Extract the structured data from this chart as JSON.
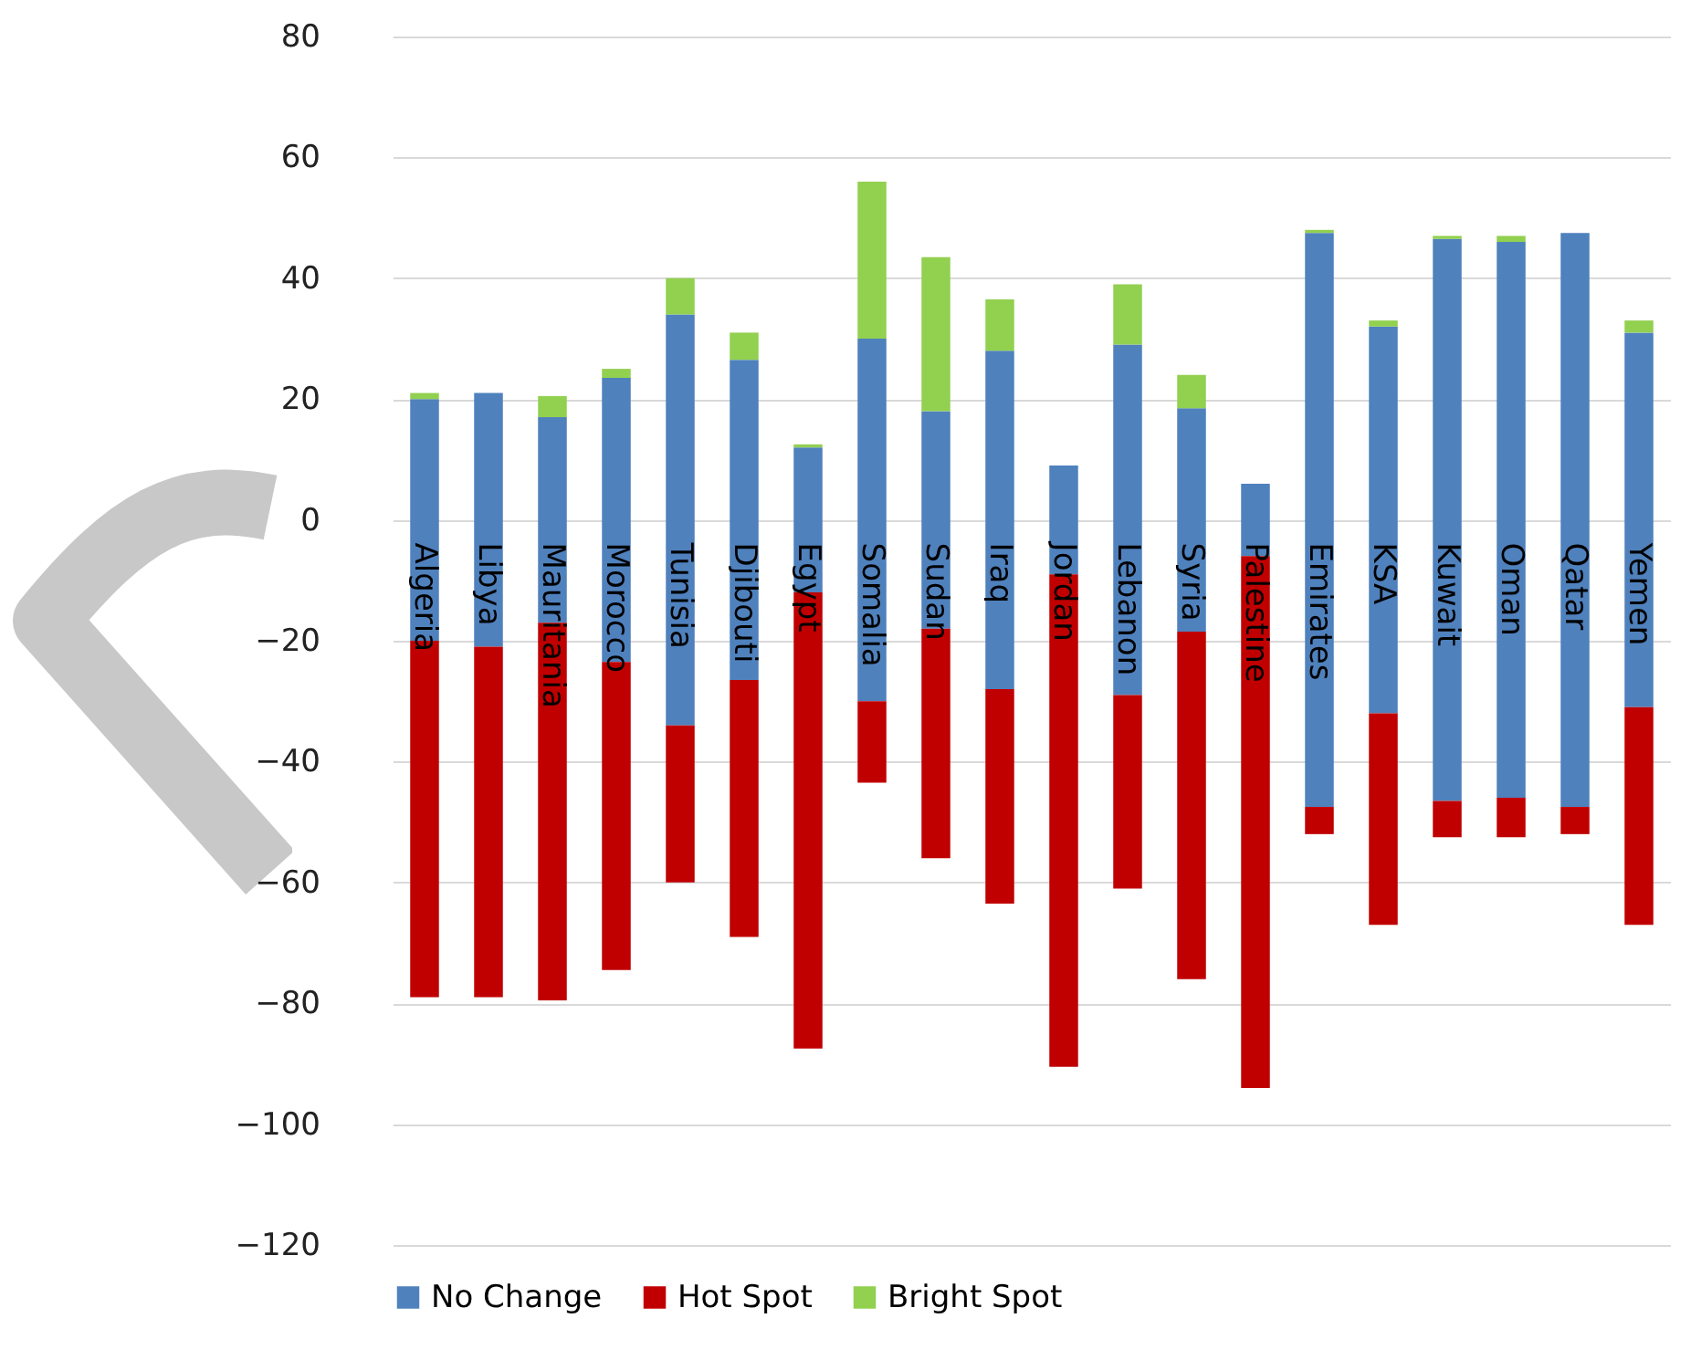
{
  "chart_data": {
    "type": "bar",
    "categories": [
      "Algeria",
      "Libya",
      "Mauritania",
      "Morocco",
      "Tunisia",
      "Djibouti",
      "Egypt",
      "Somalia",
      "Sudan",
      "Iraq",
      "Jordan",
      "Lebanon",
      "Syria",
      "Palestine",
      "Emirates",
      "KSA",
      "Kuwait",
      "Oman",
      "Qatar",
      "Yemen"
    ],
    "series": [
      {
        "name": "No Change",
        "color": "#4f81bd",
        "base": [
          -20,
          -21,
          -17,
          -23.5,
          -34,
          -26.5,
          -12,
          -30,
          -18,
          -28,
          -9,
          -29,
          -18.5,
          -6,
          -47.5,
          -32,
          -46.5,
          -46,
          -47.5,
          -31
        ],
        "values": [
          40,
          42,
          34,
          47,
          68,
          53,
          24,
          60,
          36,
          56,
          18,
          58,
          37,
          12,
          95,
          64,
          93,
          92,
          95,
          62
        ]
      },
      {
        "name": "Hot Spot",
        "color": "#c00000",
        "base": [
          -79,
          -79,
          -79.5,
          -74.5,
          -60,
          -69,
          -87.5,
          -43.5,
          -56,
          -63.5,
          -90.5,
          -61,
          -76,
          -94,
          -52,
          -67,
          -52.5,
          -52.5,
          -52,
          -67
        ],
        "values": [
          59,
          58,
          62.5,
          51,
          26,
          42.5,
          75.5,
          13.5,
          38,
          35.5,
          81.5,
          32,
          57.5,
          88,
          4.5,
          35,
          6,
          6.5,
          4.5,
          36
        ]
      },
      {
        "name": "Bright Spot",
        "color": "#92d050",
        "base": [
          20,
          null,
          17,
          23.5,
          34,
          26.5,
          12,
          30,
          18,
          28,
          null,
          29,
          18.5,
          null,
          47.5,
          32,
          46.5,
          46,
          null,
          31
        ],
        "values": [
          1,
          null,
          3.5,
          1.5,
          6,
          4.5,
          0.5,
          26,
          25.5,
          8.5,
          null,
          10,
          5.5,
          null,
          0.5,
          1,
          0.5,
          1,
          null,
          2
        ]
      }
    ],
    "ylim": [
      -120,
      80
    ],
    "yticks": [
      -120,
      -100,
      -80,
      -60,
      -40,
      -20,
      0,
      20,
      40,
      60,
      80
    ],
    "grid": "y",
    "legend": "bottom"
  }
}
